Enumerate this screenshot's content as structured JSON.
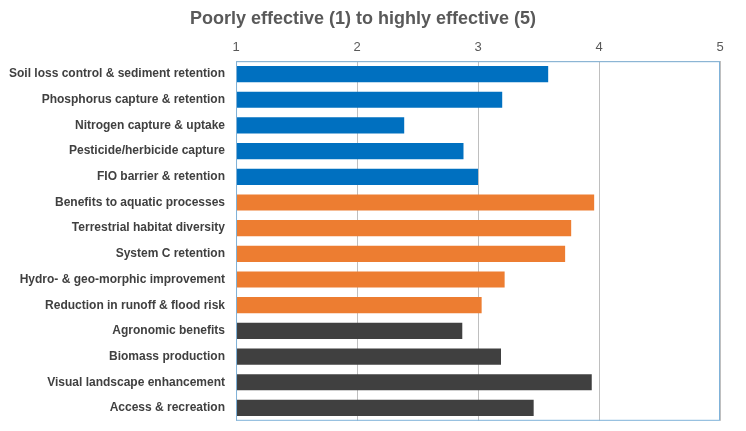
{
  "chart_data": {
    "type": "bar",
    "orientation": "horizontal",
    "title": "Poorly effective (1) to highly effective (5)",
    "categories": [
      "Soil loss control & sediment retention",
      "Phosphorus capture & retention",
      "Nitrogen capture & uptake",
      "Pesticide/herbicide capture",
      "FIO barrier & retention",
      "Benefits to aquatic processes",
      "Terrestrial habitat diversity",
      "System C retention",
      "Hydro- & geo-morphic improvement",
      "Reduction in runoff & flood risk",
      "Agronomic benefits",
      "Biomass production",
      "Visual landscape enhancement",
      "Access & recreation"
    ],
    "values": [
      3.58,
      3.2,
      2.39,
      2.88,
      3.0,
      3.96,
      3.77,
      3.72,
      3.22,
      3.03,
      2.87,
      3.19,
      3.94,
      3.46
    ],
    "colors": [
      "#0070c0",
      "#0070c0",
      "#0070c0",
      "#0070c0",
      "#0070c0",
      "#ed7d31",
      "#ed7d31",
      "#ed7d31",
      "#ed7d31",
      "#ed7d31",
      "#404040",
      "#404040",
      "#404040",
      "#404040"
    ],
    "xlim": [
      1,
      5
    ],
    "xticks": [
      1,
      2,
      3,
      4,
      5
    ],
    "grid": true
  }
}
